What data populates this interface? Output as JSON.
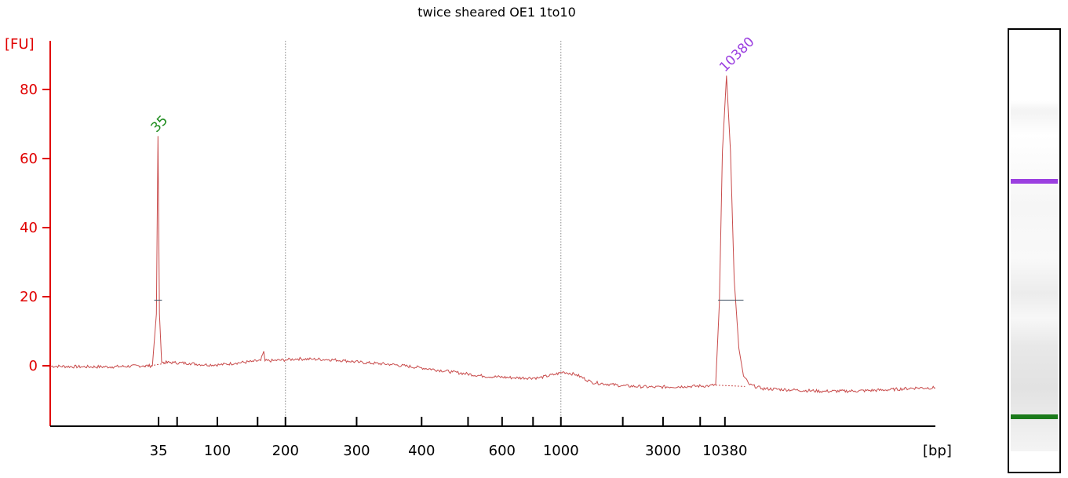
{
  "chart_data": {
    "type": "line",
    "title": "twice sheared OE1 1to10",
    "ylabel": "[FU]",
    "xlabel": "[bp]",
    "ylim": [
      -17,
      95
    ],
    "y_ticks": [
      0,
      20,
      40,
      60,
      80
    ],
    "x_ticks": [
      {
        "label": "35",
        "time": 35
      },
      {
        "label": "",
        "time": 41
      },
      {
        "label": "100",
        "time": 54
      },
      {
        "label": "",
        "time": 67
      },
      {
        "label": "200",
        "time": 76
      },
      {
        "label": "300",
        "time": 99
      },
      {
        "label": "400",
        "time": 120
      },
      {
        "label": "",
        "time": 135
      },
      {
        "label": "600",
        "time": 146
      },
      {
        "label": "",
        "time": 156
      },
      {
        "label": "1000",
        "time": 165
      },
      {
        "label": "",
        "time": 185
      },
      {
        "label": "3000",
        "time": 198
      },
      {
        "label": "",
        "time": 210
      },
      {
        "label": "10380",
        "time": 218
      }
    ],
    "grid_dashed_at_bp": [
      "200",
      "1000"
    ],
    "peaks": [
      {
        "label": "35",
        "time": 34.8,
        "height": 66.5,
        "color": "#1a8a1a"
      },
      {
        "label": "10380",
        "time": 218.5,
        "height": 84,
        "color": "#9b3fe0"
      }
    ],
    "trace": [
      [
        0,
        -0.1
      ],
      [
        10,
        -0.3
      ],
      [
        20,
        -0.3
      ],
      [
        30,
        0.0
      ],
      [
        33,
        0.0
      ],
      [
        34.3,
        15
      ],
      [
        34.8,
        66.5
      ],
      [
        35.3,
        15
      ],
      [
        36,
        1.0
      ],
      [
        40,
        0.9
      ],
      [
        45,
        0.7
      ],
      [
        50,
        0.3
      ],
      [
        55,
        0.3
      ],
      [
        60,
        0.8
      ],
      [
        65,
        1.2
      ],
      [
        68,
        1.5
      ],
      [
        69,
        4.2
      ],
      [
        69.4,
        1.4
      ],
      [
        72,
        1.5
      ],
      [
        76,
        1.7
      ],
      [
        80,
        2.0
      ],
      [
        85,
        1.9
      ],
      [
        90,
        1.8
      ],
      [
        95,
        1.5
      ],
      [
        100,
        1.0
      ],
      [
        110,
        0.4
      ],
      [
        120,
        -0.6
      ],
      [
        130,
        -1.8
      ],
      [
        140,
        -3.0
      ],
      [
        150,
        -3.5
      ],
      [
        158,
        -3.5
      ],
      [
        163,
        -2.5
      ],
      [
        166,
        -1.8
      ],
      [
        170,
        -2.6
      ],
      [
        175,
        -4.8
      ],
      [
        185,
        -5.8
      ],
      [
        195,
        -6.2
      ],
      [
        205,
        -6.0
      ],
      [
        213,
        -5.8
      ],
      [
        215,
        -5.5
      ],
      [
        216.2,
        18
      ],
      [
        217.2,
        62
      ],
      [
        218.5,
        84
      ],
      [
        219.8,
        62
      ],
      [
        221,
        25
      ],
      [
        222.5,
        5
      ],
      [
        224,
        -3
      ],
      [
        226,
        -5.5
      ],
      [
        230,
        -6.6
      ],
      [
        240,
        -7.0
      ],
      [
        250,
        -7.4
      ],
      [
        260,
        -7.3
      ],
      [
        270,
        -7.0
      ],
      [
        280,
        -6.4
      ],
      [
        286,
        -6.4
      ]
    ],
    "baseline_segments": [
      [
        [
          30.5,
          -0.3
        ],
        [
          39.0,
          1.0
        ]
      ],
      [
        [
          215.0,
          -5.6
        ],
        [
          224.5,
          -6.0
        ]
      ]
    ],
    "peak_width_markers": [
      {
        "time_from": 33.6,
        "time_to": 36.1,
        "level": 19
      },
      {
        "time_from": 215.8,
        "time_to": 224.0,
        "level": 19
      }
    ],
    "gel": {
      "bands": [
        {
          "name": "upper-marker",
          "color": "#9b3fe0",
          "position": 0.34
        },
        {
          "name": "lower-marker",
          "color": "#1a7a1a",
          "position": 0.87
        }
      ]
    }
  },
  "colors": {
    "axis": "#e00000",
    "trace": "#c84b4b",
    "grid": "#888888"
  }
}
